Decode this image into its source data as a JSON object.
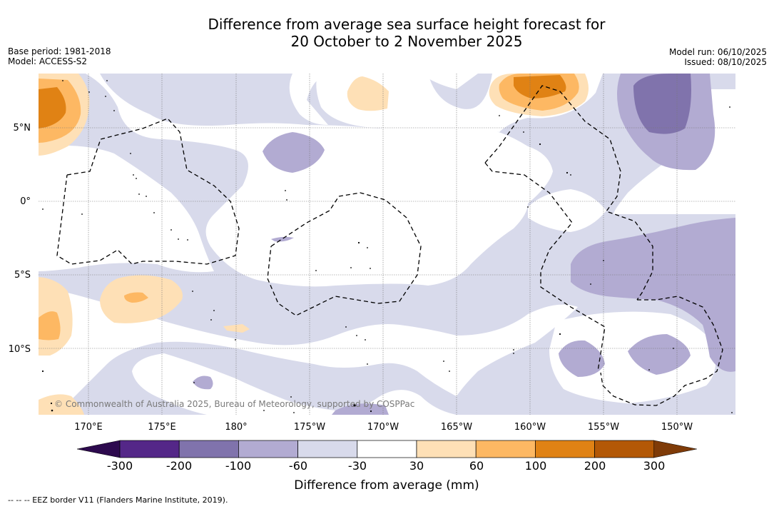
{
  "title": {
    "line1": "Difference from average sea surface height forecast for",
    "line2": "20 October to 2 November 2025"
  },
  "meta_left": {
    "base_period": "Base period: 1981-2018",
    "model": "Model: ACCESS-S2"
  },
  "meta_right": {
    "model_run": "Model run: 06/10/2025",
    "issued": "Issued: 08/10/2025"
  },
  "map": {
    "lat_labels": [
      "5°N",
      "0°",
      "5°S",
      "10°S"
    ],
    "lon_labels": [
      "170°E",
      "175°E",
      "180°",
      "175°W",
      "170°W",
      "165°W",
      "160°W",
      "155°W",
      "150°W"
    ],
    "copyright": "© Commonwealth of Australia 2025, Bureau of Meteorology, supported by COSPPac"
  },
  "colorbar": {
    "ticks": [
      "-300",
      "-200",
      "-100",
      "-60",
      "-30",
      "30",
      "60",
      "100",
      "200",
      "300"
    ],
    "colors": {
      "below_min": "#2d0a4e",
      "bins": [
        "#542788",
        "#8073ac",
        "#b2abd2",
        "#d8daeb",
        "#ffffff",
        "#fee0b6",
        "#fdb863",
        "#e08214",
        "#b35806"
      ],
      "above_max": "#7f3b08"
    },
    "label": "Difference from average (mm)"
  },
  "footnote": "--  --  -- EEZ border V11 (Flanders Marine Institute, 2019)."
}
